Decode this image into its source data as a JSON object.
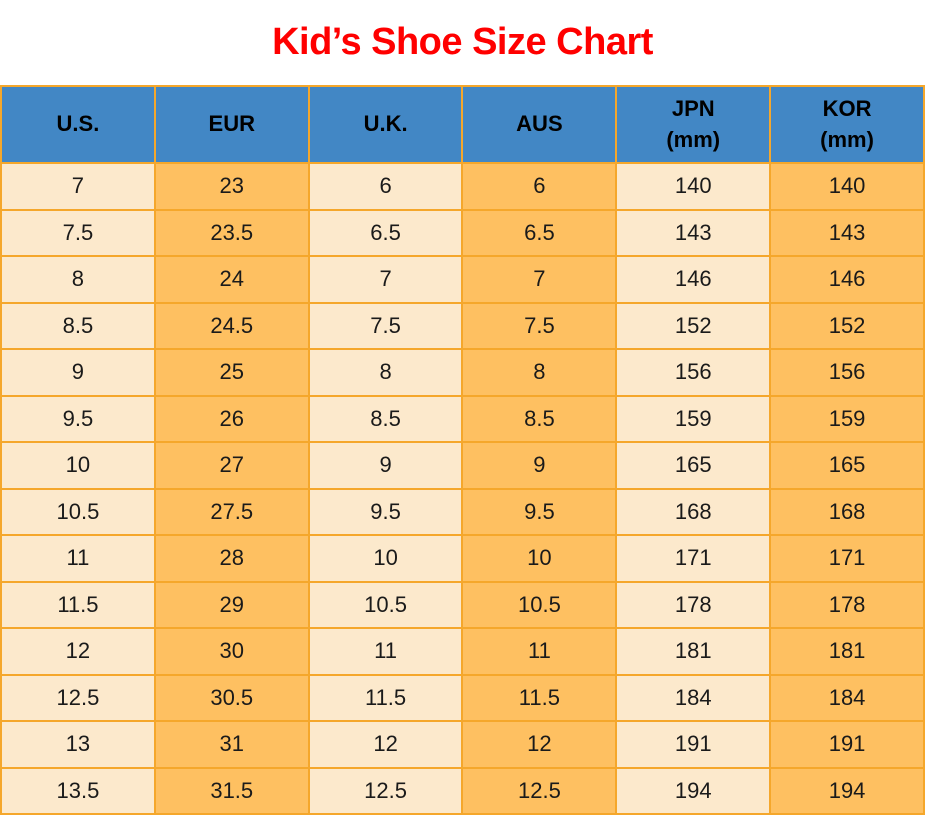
{
  "title": {
    "text": "Kid’s Shoe Size Chart"
  },
  "colors": {
    "title": "#ff0000",
    "header_bg": "#4287c5",
    "header_text": "#000000",
    "border": "#f5a72b",
    "col_light": "#fce9cc",
    "col_orange": "#fec061",
    "cell_text": "#1a1a1a"
  },
  "chart_data": {
    "type": "table",
    "title": "Kid’s Shoe Size Chart",
    "columns": [
      {
        "key": "us",
        "label": "U.S.",
        "sub": ""
      },
      {
        "key": "eur",
        "label": "EUR",
        "sub": ""
      },
      {
        "key": "uk",
        "label": "U.K.",
        "sub": ""
      },
      {
        "key": "aus",
        "label": "AUS",
        "sub": ""
      },
      {
        "key": "jpn",
        "label": "JPN",
        "sub": "(mm)"
      },
      {
        "key": "kor",
        "label": "KOR",
        "sub": "(mm)"
      }
    ],
    "rows": [
      [
        "7",
        "23",
        "6",
        "6",
        "140",
        "140"
      ],
      [
        "7.5",
        "23.5",
        "6.5",
        "6.5",
        "143",
        "143"
      ],
      [
        "8",
        "24",
        "7",
        "7",
        "146",
        "146"
      ],
      [
        "8.5",
        "24.5",
        "7.5",
        "7.5",
        "152",
        "152"
      ],
      [
        "9",
        "25",
        "8",
        "8",
        "156",
        "156"
      ],
      [
        "9.5",
        "26",
        "8.5",
        "8.5",
        "159",
        "159"
      ],
      [
        "10",
        "27",
        "9",
        "9",
        "165",
        "165"
      ],
      [
        "10.5",
        "27.5",
        "9.5",
        "9.5",
        "168",
        "168"
      ],
      [
        "11",
        "28",
        "10",
        "10",
        "171",
        "171"
      ],
      [
        "11.5",
        "29",
        "10.5",
        "10.5",
        "178",
        "178"
      ],
      [
        "12",
        "30",
        "11",
        "11",
        "181",
        "181"
      ],
      [
        "12.5",
        "30.5",
        "11.5",
        "11.5",
        "184",
        "184"
      ],
      [
        "13",
        "31",
        "12",
        "12",
        "191",
        "191"
      ],
      [
        "13.5",
        "31.5",
        "12.5",
        "12.5",
        "194",
        "194"
      ]
    ]
  }
}
